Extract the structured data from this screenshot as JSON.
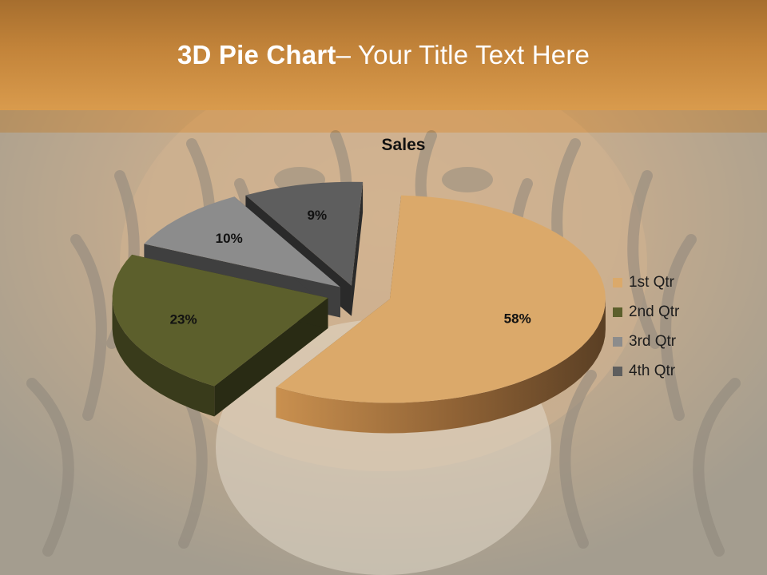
{
  "slide": {
    "title_bold": "3D Pie Chart",
    "title_rest": "– Your Title Text Here"
  },
  "colors": {
    "header": "#c3843a",
    "series": [
      "#dba96a",
      "#5c5f2c",
      "#8c8c8c",
      "#5e5e5e"
    ]
  },
  "chart_data": {
    "type": "pie",
    "style": "3d-exploded",
    "title": "Sales",
    "categories": [
      "1st Qtr",
      "2nd Qtr",
      "3rd Qtr",
      "4th Qtr"
    ],
    "values": [
      58,
      23,
      10,
      9
    ],
    "data_labels": [
      "58%",
      "23%",
      "10%",
      "9%"
    ],
    "legend_position": "right"
  },
  "background_image": "tiger-face-photo"
}
